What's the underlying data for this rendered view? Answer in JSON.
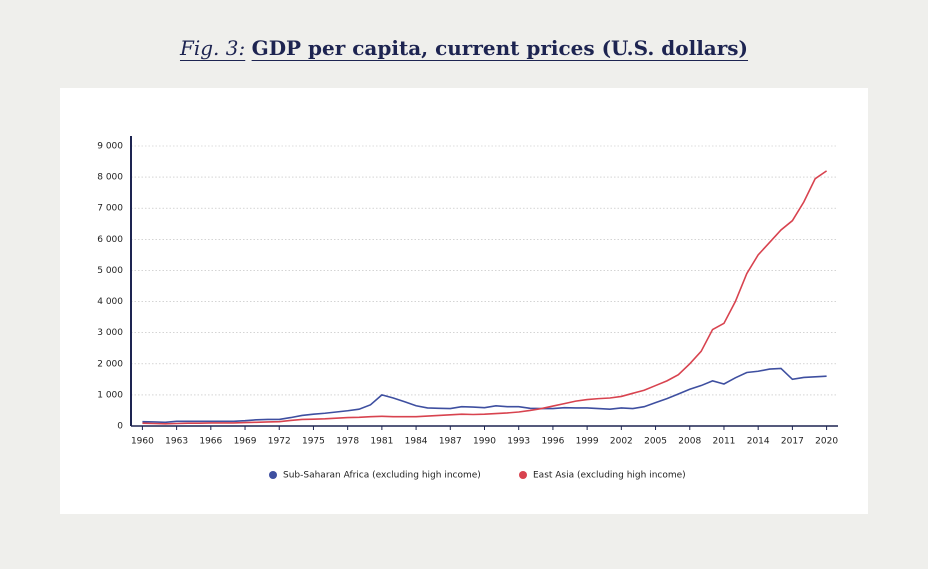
{
  "chart_data": {
    "type": "line",
    "title_prefix": "Fig. 3:",
    "title": "GDP per capita, current prices (U.S. dollars)",
    "x": [
      1960,
      1961,
      1962,
      1963,
      1964,
      1965,
      1966,
      1967,
      1968,
      1969,
      1970,
      1971,
      1972,
      1973,
      1974,
      1975,
      1976,
      1977,
      1978,
      1979,
      1980,
      1981,
      1982,
      1983,
      1984,
      1985,
      1986,
      1987,
      1988,
      1989,
      1990,
      1991,
      1992,
      1993,
      1994,
      1995,
      1996,
      1997,
      1998,
      1999,
      2000,
      2001,
      2002,
      2003,
      2004,
      2005,
      2006,
      2007,
      2008,
      2009,
      2010,
      2011,
      2012,
      2013,
      2014,
      2015,
      2016,
      2017,
      2018,
      2019,
      2020
    ],
    "series": [
      {
        "name": "Sub-Saharan Africa (excluding high income)",
        "color": "#3e4fa0",
        "values": [
          140,
          130,
          120,
          150,
          150,
          150,
          150,
          150,
          150,
          170,
          200,
          210,
          210,
          270,
          340,
          380,
          410,
          450,
          490,
          540,
          680,
          1000,
          900,
          780,
          650,
          580,
          570,
          560,
          620,
          610,
          590,
          650,
          620,
          620,
          570,
          560,
          560,
          590,
          580,
          580,
          560,
          540,
          580,
          560,
          620,
          750,
          880,
          1030,
          1180,
          1300,
          1450,
          1350,
          1550,
          1720,
          1760,
          1830,
          1850,
          1500,
          1560,
          1580,
          1600
        ]
      },
      {
        "name": "East Asia (excluding high income)",
        "color": "#d8434f",
        "values": [
          90,
          80,
          70,
          80,
          90,
          90,
          100,
          100,
          100,
          110,
          120,
          130,
          140,
          180,
          210,
          220,
          230,
          250,
          270,
          280,
          300,
          310,
          300,
          300,
          300,
          320,
          340,
          360,
          380,
          370,
          380,
          400,
          420,
          450,
          500,
          560,
          640,
          720,
          800,
          850,
          880,
          900,
          950,
          1050,
          1150,
          1300,
          1450,
          1650,
          2000,
          2400,
          3100,
          3300,
          4000,
          4900,
          5500,
          5900,
          6300,
          6600,
          7200,
          7950,
          8200
        ]
      }
    ],
    "xlim": [
      1959,
      2021
    ],
    "xticks": [
      1960,
      1963,
      1966,
      1969,
      1972,
      1975,
      1978,
      1981,
      1984,
      1987,
      1990,
      1993,
      1996,
      1999,
      2002,
      2005,
      2008,
      2011,
      2014,
      2017,
      2020
    ],
    "ylim": [
      0,
      9000
    ],
    "yticks": [
      0,
      {
        "value": 1000,
        "label": "1 000"
      },
      {
        "value": 2000,
        "label": "2 000"
      },
      {
        "value": 3000,
        "label": "3 000"
      },
      {
        "value": 4000,
        "label": "4 000"
      },
      {
        "value": 5000,
        "label": "5 000"
      },
      {
        "value": 6000,
        "label": "6 000"
      },
      {
        "value": 7000,
        "label": "7 000"
      },
      {
        "value": 8000,
        "label": "8 000"
      },
      {
        "value": 9000,
        "label": "9 000"
      }
    ],
    "grid": true,
    "legend": "bottom"
  }
}
